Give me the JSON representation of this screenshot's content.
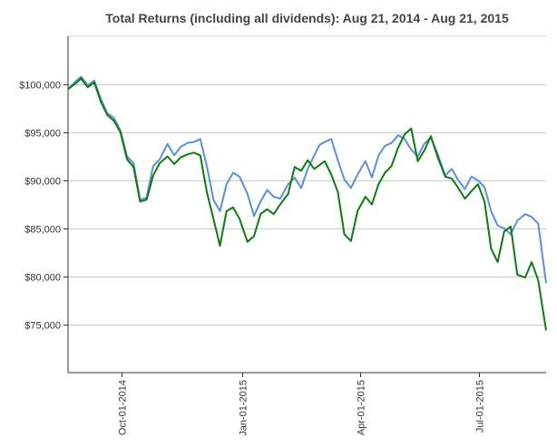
{
  "chart_data": {
    "type": "line",
    "title": "Total Returns (including all dividends): Aug 21, 2014 - Aug 21, 2015",
    "xlabel": "",
    "ylabel": "",
    "ylim": [
      70000,
      105000
    ],
    "xlim": [
      "2014-08-21",
      "2015-08-21"
    ],
    "grid": {
      "horizontal": true,
      "vertical": false
    },
    "legend": "none",
    "y_ticks": [
      {
        "value": 75000,
        "label": "$75,000"
      },
      {
        "value": 80000,
        "label": "$80,000"
      },
      {
        "value": 85000,
        "label": "$85,000"
      },
      {
        "value": 90000,
        "label": "$90,000"
      },
      {
        "value": 95000,
        "label": "$95,000"
      },
      {
        "value": 100000,
        "label": "$100,000"
      }
    ],
    "x_ticks": [
      {
        "value": "2014-10-01",
        "label": "Oct-01-2014"
      },
      {
        "value": "2015-01-01",
        "label": "Jan-01-2015"
      },
      {
        "value": "2015-04-01",
        "label": "Apr-01-2015"
      },
      {
        "value": "2015-07-01",
        "label": "Jul-01-2015"
      }
    ],
    "series": [
      {
        "color": "#5b8fdb",
        "x": [
          "2014-08-21",
          "2014-08-26",
          "2014-08-31",
          "2014-09-05",
          "2014-09-10",
          "2014-09-15",
          "2014-09-20",
          "2014-09-25",
          "2014-09-30",
          "2014-10-05",
          "2014-10-10",
          "2014-10-15",
          "2014-10-20",
          "2014-10-25",
          "2014-10-30",
          "2014-11-05",
          "2014-11-10",
          "2014-11-15",
          "2014-11-20",
          "2014-11-25",
          "2014-11-30",
          "2014-12-05",
          "2014-12-10",
          "2014-12-15",
          "2014-12-20",
          "2014-12-25",
          "2014-12-30",
          "2015-01-05",
          "2015-01-10",
          "2015-01-15",
          "2015-01-20",
          "2015-01-25",
          "2015-01-30",
          "2015-02-05",
          "2015-02-10",
          "2015-02-15",
          "2015-02-20",
          "2015-02-25",
          "2015-03-01",
          "2015-03-05",
          "2015-03-10",
          "2015-03-15",
          "2015-03-20",
          "2015-03-25",
          "2015-03-30",
          "2015-04-05",
          "2015-04-10",
          "2015-04-15",
          "2015-04-20",
          "2015-04-25",
          "2015-04-30",
          "2015-05-05",
          "2015-05-10",
          "2015-05-15",
          "2015-05-20",
          "2015-05-25",
          "2015-05-30",
          "2015-06-05",
          "2015-06-10",
          "2015-06-15",
          "2015-06-20",
          "2015-06-25",
          "2015-06-30",
          "2015-07-05",
          "2015-07-10",
          "2015-07-15",
          "2015-07-20",
          "2015-07-25",
          "2015-07-30",
          "2015-08-05",
          "2015-08-10",
          "2015-08-15",
          "2015-08-21"
        ],
        "values": [
          99500,
          100200,
          100800,
          99900,
          100400,
          98500,
          97000,
          96500,
          95200,
          92500,
          91800,
          88000,
          88200,
          91500,
          92200,
          93800,
          92600,
          93500,
          93900,
          94000,
          94300,
          91500,
          88000,
          86800,
          89600,
          90800,
          90400,
          88600,
          86300,
          87800,
          89000,
          88300,
          88100,
          89600,
          90300,
          89200,
          91200,
          92600,
          93700,
          94000,
          94300,
          92100,
          90100,
          89200,
          90600,
          92000,
          90300,
          92600,
          93600,
          93900,
          94700,
          94300,
          93200,
          92500,
          93800,
          94500,
          92800,
          90500,
          91200,
          90000,
          89100,
          90400,
          90000,
          89300,
          86800,
          85300,
          85000,
          84400,
          85800,
          86500,
          86200,
          85500,
          79300
        ]
      },
      {
        "color": "#0f7a0f",
        "x": [
          "2014-08-21",
          "2014-08-26",
          "2014-08-31",
          "2014-09-05",
          "2014-09-10",
          "2014-09-15",
          "2014-09-20",
          "2014-09-25",
          "2014-09-30",
          "2014-10-05",
          "2014-10-10",
          "2014-10-15",
          "2014-10-20",
          "2014-10-25",
          "2014-10-30",
          "2014-11-05",
          "2014-11-10",
          "2014-11-15",
          "2014-11-20",
          "2014-11-25",
          "2014-11-30",
          "2014-12-05",
          "2014-12-10",
          "2014-12-15",
          "2014-12-20",
          "2014-12-25",
          "2014-12-30",
          "2015-01-05",
          "2015-01-10",
          "2015-01-15",
          "2015-01-20",
          "2015-01-25",
          "2015-01-30",
          "2015-02-05",
          "2015-02-10",
          "2015-02-15",
          "2015-02-20",
          "2015-02-25",
          "2015-03-01",
          "2015-03-05",
          "2015-03-10",
          "2015-03-15",
          "2015-03-20",
          "2015-03-25",
          "2015-03-30",
          "2015-04-05",
          "2015-04-10",
          "2015-04-15",
          "2015-04-20",
          "2015-04-25",
          "2015-04-30",
          "2015-05-05",
          "2015-05-10",
          "2015-05-15",
          "2015-05-20",
          "2015-05-25",
          "2015-05-30",
          "2015-06-05",
          "2015-06-10",
          "2015-06-15",
          "2015-06-20",
          "2015-06-25",
          "2015-06-30",
          "2015-07-05",
          "2015-07-10",
          "2015-07-15",
          "2015-07-20",
          "2015-07-25",
          "2015-07-30",
          "2015-08-05",
          "2015-08-10",
          "2015-08-15",
          "2015-08-21"
        ],
        "values": [
          99500,
          100000,
          100600,
          99700,
          100200,
          98200,
          96800,
          96200,
          95000,
          92200,
          91400,
          87800,
          88000,
          90500,
          91800,
          92500,
          91700,
          92400,
          92700,
          92900,
          92600,
          88800,
          86000,
          83200,
          86800,
          87200,
          86000,
          83600,
          84200,
          86500,
          87000,
          86500,
          87500,
          88600,
          91400,
          91000,
          92100,
          91200,
          91600,
          92000,
          90600,
          88800,
          84400,
          83700,
          86800,
          88300,
          87500,
          89600,
          90800,
          91500,
          93400,
          94800,
          95400,
          92000,
          93100,
          94600,
          92500,
          90400,
          90200,
          89200,
          88100,
          88900,
          89600,
          87800,
          82900,
          81500,
          84700,
          85200,
          80200,
          79900,
          81500,
          79600,
          74400
        ]
      }
    ]
  }
}
